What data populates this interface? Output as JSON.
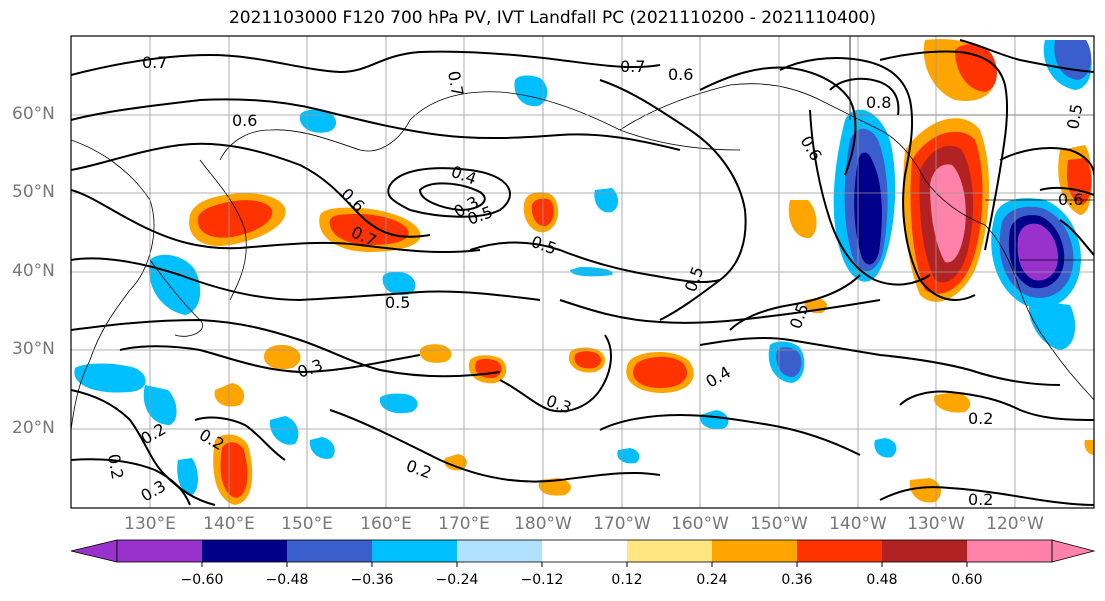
{
  "title": "2021103000 F120 700 hPa PV, IVT Landfall PC (2021110200 - 2021110400)",
  "lat_labels": [
    "60°N",
    "50°N",
    "40°N",
    "30°N",
    "20°N"
  ],
  "lon_labels": [
    "130°E",
    "140°E",
    "150°E",
    "160°E",
    "170°E",
    "180°W",
    "170°W",
    "160°W",
    "150°W",
    "140°W",
    "130°W",
    "120°W"
  ],
  "contour_labels": [
    "0.7",
    "0.7",
    "0.7",
    "0.6",
    "0.6",
    "0.6",
    "0.8",
    "0.6",
    "0.5",
    "0.4",
    "0.3",
    "0.7",
    "0.5",
    "0.5",
    "0.5",
    "0.5",
    "0.3",
    "0.3",
    "0.4",
    "0.2",
    "0.2",
    "0.2",
    "0.2",
    "0.3",
    "0.2",
    "0.2",
    "0.5",
    "0.6"
  ],
  "colorbar": {
    "ticks": [
      "−0.60",
      "−0.48",
      "−0.36",
      "−0.24",
      "−0.12",
      "0.12",
      "0.24",
      "0.36",
      "0.48",
      "0.60"
    ],
    "colors": [
      "#9932cc",
      "#00008b",
      "#3a5fcd",
      "#00bfff",
      "#b0e2ff",
      "#ffffff",
      "#ffe680",
      "#ffa500",
      "#ff3300",
      "#b22222",
      "#ff82ab"
    ]
  }
}
